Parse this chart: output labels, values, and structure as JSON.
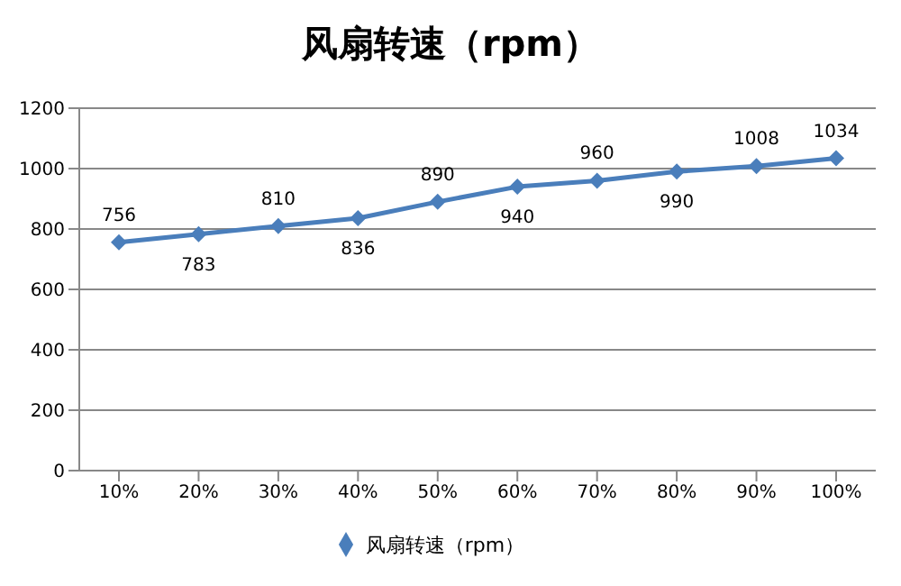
{
  "chart_data": {
    "type": "line",
    "title": "风扇转速（rpm）",
    "categories": [
      "10%",
      "20%",
      "30%",
      "40%",
      "50%",
      "60%",
      "70%",
      "80%",
      "90%",
      "100%"
    ],
    "series": [
      {
        "name": "风扇转速（rpm）",
        "color": "#4a7ebb",
        "values": [
          756,
          783,
          810,
          836,
          890,
          940,
          960,
          990,
          1008,
          1034
        ]
      }
    ],
    "ylim": [
      0,
      1200
    ],
    "yticks": [
      0,
      200,
      400,
      600,
      800,
      1000,
      1200
    ],
    "grid": "y",
    "legend": "bottom",
    "marker": "diamond",
    "line_style": "solid",
    "data_labels": true
  }
}
